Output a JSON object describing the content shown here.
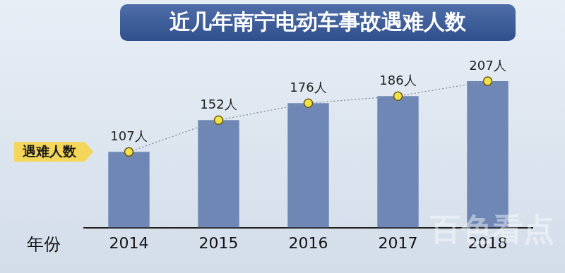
{
  "chart_data": {
    "type": "bar",
    "title": "近几年南宁电动车事故遇难人数",
    "x_label": "年份",
    "categories": [
      "2014",
      "2015",
      "2016",
      "2017",
      "2018"
    ],
    "series": [
      {
        "name": "遇难人数",
        "color": "#6e87b4",
        "values": [
          107,
          152,
          176,
          186,
          207
        ],
        "value_labels": [
          "107人",
          "152人",
          "176人",
          "186人",
          "207人"
        ],
        "marker": "circle",
        "line_style": "dotted"
      }
    ],
    "ylim": [
      0,
      260
    ],
    "grid": false,
    "legend": "left",
    "data_labels": true,
    "tick_labels": "x",
    "watermark": "百色看点"
  }
}
